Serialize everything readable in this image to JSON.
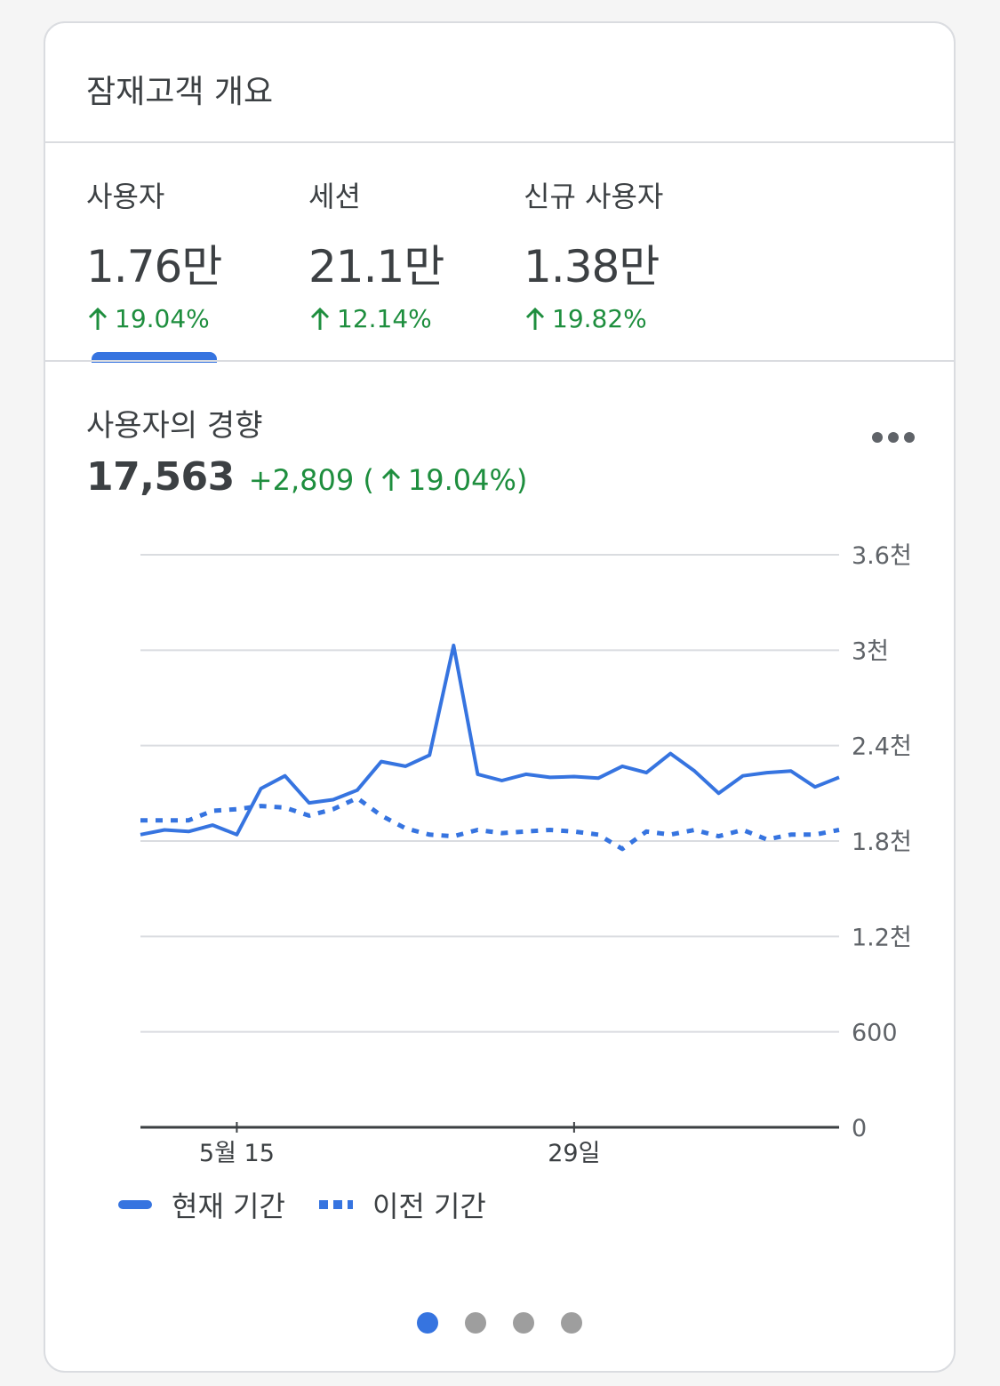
{
  "card": {
    "title": "잠재고객 개요"
  },
  "metrics": [
    {
      "label": "사용자",
      "value": "1.76만",
      "delta": "19.04%"
    },
    {
      "label": "세션",
      "value": "21.1만",
      "delta": "12.14%"
    },
    {
      "label": "신규 사용자",
      "value": "1.38만",
      "delta": "19.82%"
    }
  ],
  "trend": {
    "title": "사용자의 경향",
    "value": "17,563",
    "change_prefix": "+2,809 (",
    "change_pct": "19.04%)"
  },
  "colors": {
    "accent": "#3674e0",
    "positive": "#1e8e3e"
  },
  "legend": {
    "current": "현재 기간",
    "previous": "이전 기간"
  },
  "chart_data": {
    "type": "line",
    "yticks": [
      "3.6천",
      "3천",
      "2.4천",
      "1.8천",
      "1.2천",
      "600",
      "0"
    ],
    "xticks": [
      "5월 15",
      "29일"
    ],
    "ylim": [
      0,
      3600
    ],
    "x": [
      11,
      12,
      13,
      14,
      15,
      16,
      17,
      18,
      19,
      20,
      21,
      22,
      23,
      24,
      25,
      26,
      27,
      28,
      29,
      30,
      31,
      32,
      33,
      34,
      35,
      36,
      37,
      38,
      39,
      40
    ],
    "series": [
      {
        "name": "현재 기간",
        "style": "solid",
        "values": [
          1840,
          1870,
          1860,
          1900,
          1840,
          2130,
          2210,
          2040,
          2060,
          2120,
          2300,
          2270,
          2340,
          3030,
          2220,
          2180,
          2220,
          2200,
          2205,
          2195,
          2270,
          2230,
          2350,
          2240,
          2100,
          2210,
          2230,
          2240,
          2140,
          2200
        ]
      },
      {
        "name": "이전 기간",
        "style": "dotted",
        "values": [
          1930,
          1930,
          1930,
          1990,
          2000,
          2020,
          2010,
          1960,
          2000,
          2070,
          1960,
          1880,
          1840,
          1830,
          1870,
          1850,
          1860,
          1870,
          1860,
          1840,
          1750,
          1860,
          1840,
          1870,
          1830,
          1870,
          1810,
          1840,
          1840,
          1870
        ]
      }
    ]
  },
  "pagination": {
    "pages": 4,
    "active": 0
  }
}
